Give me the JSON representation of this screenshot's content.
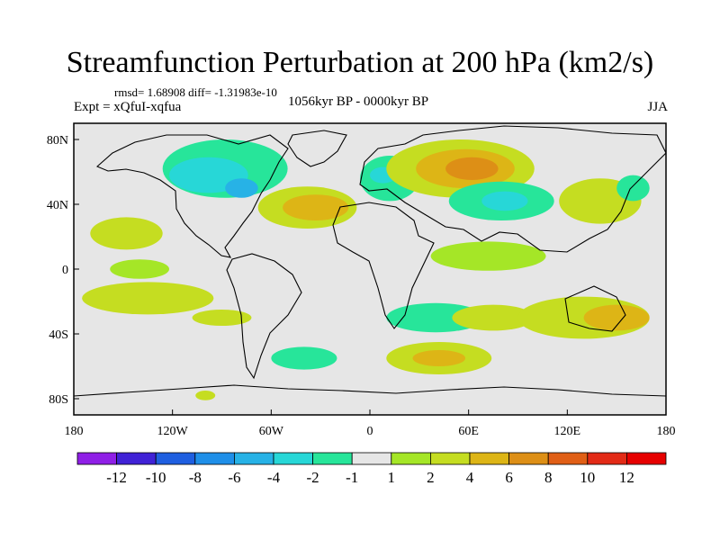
{
  "chart_data": {
    "type": "heatmap",
    "title": "Streamfunction Perturbation at 200 hPa (km2/s)",
    "stats_text": "rmsd= 1.68908 diff= -1.31983e-10",
    "experiment_text": "Expt = xQfuI-xqfua",
    "subtitle": "1056kyr BP - 0000kyr BP",
    "season": "JJA",
    "x_ticks": [
      "180",
      "120W",
      "60W",
      "0",
      "60E",
      "120E",
      "180"
    ],
    "y_ticks": [
      "80N",
      "40N",
      "0",
      "40S",
      "80S"
    ],
    "x_range": [
      -180,
      180
    ],
    "y_range": [
      -90,
      90
    ],
    "colorbar": {
      "labels": [
        "-12",
        "-10",
        "-8",
        "-6",
        "-4",
        "-2",
        "-1",
        "1",
        "2",
        "4",
        "6",
        "8",
        "10",
        "12"
      ],
      "colors": [
        "#8f1fe6",
        "#4022d6",
        "#1f5fe0",
        "#1f8fe8",
        "#27b2e6",
        "#27d7d7",
        "#27e59a",
        "#e6e6e6",
        "#a5e627",
        "#c5dd21",
        "#ddb516",
        "#dd8f16",
        "#e05f16",
        "#e22a16",
        "#e60000"
      ]
    },
    "regions": [
      {
        "lon": -88,
        "lat": 62,
        "rlon": 38,
        "rlat": 18,
        "level": -2
      },
      {
        "lon": -98,
        "lat": 58,
        "rlon": 24,
        "rlat": 11,
        "level": -4
      },
      {
        "lon": -78,
        "lat": 50,
        "rlon": 10,
        "rlat": 6,
        "level": -6
      },
      {
        "lon": -30,
        "lat": 78,
        "rlon": 18,
        "rlat": 6,
        "level": -1
      },
      {
        "lon": -83,
        "lat": 28,
        "rlon": 22,
        "rlat": 10,
        "level": -1
      },
      {
        "lon": -38,
        "lat": 38,
        "rlon": 30,
        "rlat": 13,
        "level": 2
      },
      {
        "lon": -33,
        "lat": 38,
        "rlon": 20,
        "rlat": 8,
        "level": 4
      },
      {
        "lon": 12,
        "lat": 56,
        "rlon": 18,
        "rlat": 14,
        "level": -2
      },
      {
        "lon": 8,
        "lat": 58,
        "rlon": 8,
        "rlat": 5,
        "level": -4
      },
      {
        "lon": 55,
        "lat": 62,
        "rlon": 45,
        "rlat": 18,
        "level": 2
      },
      {
        "lon": 58,
        "lat": 62,
        "rlon": 30,
        "rlat": 12,
        "level": 4
      },
      {
        "lon": 62,
        "lat": 62,
        "rlon": 16,
        "rlat": 7,
        "level": 6
      },
      {
        "lon": 80,
        "lat": 42,
        "rlon": 32,
        "rlat": 12,
        "level": -2
      },
      {
        "lon": 82,
        "lat": 42,
        "rlon": 14,
        "rlat": 6,
        "level": -4
      },
      {
        "lon": 140,
        "lat": 42,
        "rlon": 25,
        "rlat": 14,
        "level": 2
      },
      {
        "lon": 160,
        "lat": 50,
        "rlon": 10,
        "rlat": 8,
        "level": -2
      },
      {
        "lon": -148,
        "lat": 22,
        "rlon": 22,
        "rlat": 10,
        "level": 2
      },
      {
        "lon": -140,
        "lat": 0,
        "rlon": 18,
        "rlat": 6,
        "level": 1
      },
      {
        "lon": -80,
        "lat": -8,
        "rlon": 45,
        "rlat": 8,
        "level": -1
      },
      {
        "lon": -75,
        "lat": -30,
        "rlon": 30,
        "rlat": 8,
        "level": -1
      },
      {
        "lon": -135,
        "lat": -18,
        "rlon": 40,
        "rlat": 10,
        "level": 2
      },
      {
        "lon": -90,
        "lat": -30,
        "rlon": 18,
        "rlat": 5,
        "level": 2
      },
      {
        "lon": 20,
        "lat": -28,
        "rlon": 55,
        "rlat": 14,
        "level": -1
      },
      {
        "lon": 40,
        "lat": -30,
        "rlon": 30,
        "rlat": 9,
        "level": -2
      },
      {
        "lon": 72,
        "lat": 8,
        "rlon": 35,
        "rlat": 9,
        "level": 1
      },
      {
        "lon": 75,
        "lat": -30,
        "rlon": 25,
        "rlat": 8,
        "level": 2
      },
      {
        "lon": 130,
        "lat": -30,
        "rlon": 40,
        "rlat": 13,
        "level": 2
      },
      {
        "lon": 150,
        "lat": -30,
        "rlon": 20,
        "rlat": 8,
        "level": 4
      },
      {
        "lon": 178,
        "lat": -30,
        "rlon": 8,
        "rlat": 8,
        "level": -1
      },
      {
        "lon": -55,
        "lat": -54,
        "rlon": 35,
        "rlat": 10,
        "level": -1
      },
      {
        "lon": -40,
        "lat": -55,
        "rlon": 20,
        "rlat": 7,
        "level": -2
      },
      {
        "lon": 42,
        "lat": -55,
        "rlon": 32,
        "rlat": 10,
        "level": 2
      },
      {
        "lon": 42,
        "lat": -55,
        "rlon": 16,
        "rlat": 5,
        "level": 4
      },
      {
        "lon": -100,
        "lat": -78,
        "rlon": 6,
        "rlat": 3,
        "level": 2
      }
    ]
  }
}
